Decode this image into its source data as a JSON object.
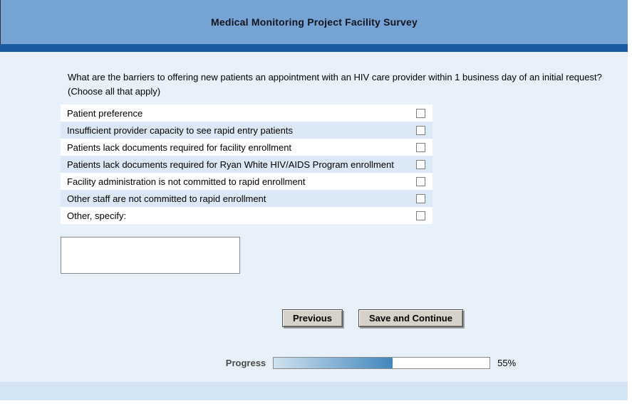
{
  "header": {
    "title": "Medical Monitoring Project Facility Survey"
  },
  "question": {
    "line1": "What are the barriers to offering new patients an appointment with an HIV care provider within 1 business day of an initial request?",
    "line2": "(Choose all that apply)"
  },
  "options": [
    {
      "label": "Patient preference",
      "checked": false
    },
    {
      "label": "Insufficient provider capacity to see rapid entry patients",
      "checked": false
    },
    {
      "label": "Patients lack documents required for facility enrollment",
      "checked": false
    },
    {
      "label": "Patients lack documents required for Ryan White HIV/AIDS Program enrollment",
      "checked": false
    },
    {
      "label": "Facility administration is not committed to rapid enrollment",
      "checked": false
    },
    {
      "label": "Other staff are not committed to rapid enrollment",
      "checked": false
    },
    {
      "label": "Other, specify:",
      "checked": false
    }
  ],
  "other_specify": {
    "value": ""
  },
  "buttons": {
    "previous": "Previous",
    "save": "Save and Continue"
  },
  "progress": {
    "label": "Progress",
    "percent": 55,
    "percent_label": "55%"
  },
  "colors": {
    "header_bg": "#74a3d4",
    "stripe_bg": "#1a5aa0",
    "content_bg": "#e8f1f9",
    "alt_row": "#dbe9f6",
    "footer_bg": "#d3e5f4",
    "button_bg": "#d6d2ca",
    "progress_start": "#cfe2ef",
    "progress_end": "#4187bd"
  }
}
